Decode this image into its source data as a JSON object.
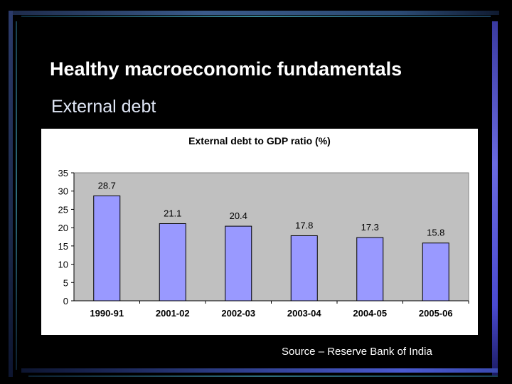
{
  "slide": {
    "title": "Healthy macroeconomic fundamentals",
    "subtitle": "External debt",
    "source": "Source – Reserve Bank of India"
  },
  "colors": {
    "background": "#000000",
    "bar_fill": "#9999ff",
    "plot_area": "#c0c0c0",
    "bar_stroke": "#000000"
  },
  "chart_data": {
    "type": "bar",
    "title": "External debt to GDP ratio (%)",
    "categories": [
      "1990-91",
      "2001-02",
      "2002-03",
      "2003-04",
      "2004-05",
      "2005-06"
    ],
    "values": [
      28.7,
      21.1,
      20.4,
      17.8,
      17.3,
      15.8
    ],
    "data_labels": [
      "28.7",
      "21.1",
      "20.4",
      "17.8",
      "17.3",
      "15.8"
    ],
    "y_ticks": [
      "0",
      "5",
      "10",
      "15",
      "20",
      "25",
      "30",
      "35"
    ],
    "ylim": [
      0,
      35
    ],
    "xlabel": "",
    "ylabel": "",
    "grid": false,
    "legend": "none"
  }
}
